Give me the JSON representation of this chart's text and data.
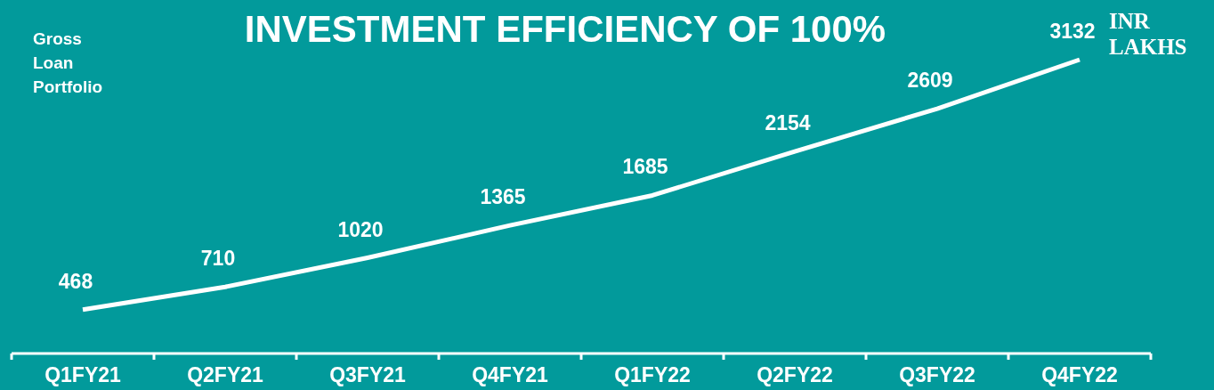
{
  "chart_data": {
    "type": "line",
    "title": "INVESTMENT EFFICIENCY OF 100%",
    "ylabel": "Gross Loan Portfolio",
    "annotations": [
      "INR LAKHS"
    ],
    "categories": [
      "Q1FY21",
      "Q2FY21",
      "Q3FY21",
      "Q4FY21",
      "Q1FY22",
      "Q2FY22",
      "Q3FY22",
      "Q4FY22"
    ],
    "series": [
      {
        "color": "#ffffff",
        "values": [
          468,
          710,
          1020,
          1365,
          1685,
          2154,
          2609,
          3132
        ]
      }
    ],
    "data_labels": true
  }
}
